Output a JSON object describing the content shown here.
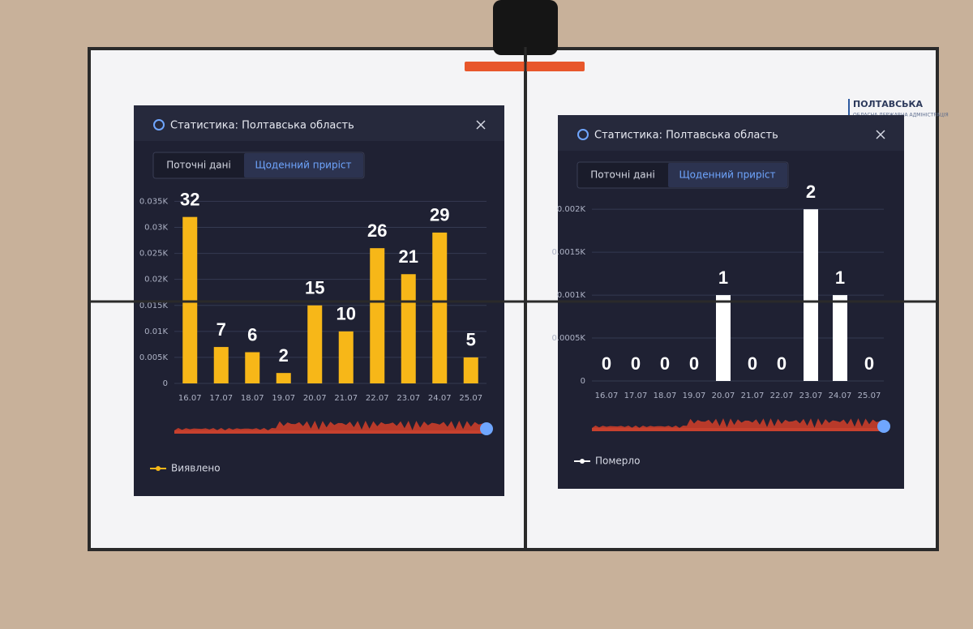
{
  "chart_data": [
    {
      "type": "bar",
      "title": "Статистика: Полтавська область",
      "tabs": [
        "Поточні дані",
        "Щоденний приріст"
      ],
      "categories": [
        "16.07",
        "17.07",
        "18.07",
        "19.07",
        "20.07",
        "21.07",
        "22.07",
        "23.07",
        "24.07",
        "25.07"
      ],
      "series": [
        {
          "name": "Виявлено",
          "color": "#f7b718",
          "values": [
            32,
            7,
            6,
            2,
            15,
            10,
            26,
            21,
            29,
            5
          ]
        }
      ],
      "ylim": [
        0,
        36
      ],
      "yticks": [
        0,
        {
          "value": 5,
          "label": "0.005K"
        },
        {
          "value": 10,
          "label": "0.01K"
        },
        {
          "value": 15,
          "label": "0.015K"
        },
        {
          "value": 20,
          "label": "0.02K"
        },
        {
          "value": 25,
          "label": "0.025K"
        },
        {
          "value": 30,
          "label": "0.03K"
        },
        {
          "value": 35,
          "label": "0.035K"
        }
      ],
      "grid": true
    },
    {
      "type": "bar",
      "title": "Статистика: Полтавська область",
      "tabs": [
        "Поточні дані",
        "Щоденний приріст"
      ],
      "categories": [
        "16.07",
        "17.07",
        "18.07",
        "19.07",
        "20.07",
        "21.07",
        "22.07",
        "23.07",
        "24.07",
        "25.07"
      ],
      "series": [
        {
          "name": "Померло",
          "color": "#ffffff",
          "values": [
            0,
            0,
            0,
            0,
            1,
            0,
            0,
            2,
            1,
            0
          ]
        }
      ],
      "ylim": [
        0,
        2.2
      ],
      "yticks": [
        0,
        {
          "value": 0.5,
          "label": "0.0005K"
        },
        {
          "value": 1,
          "label": "0.001K"
        },
        {
          "value": 1.5,
          "label": "0.0015K"
        },
        {
          "value": 2,
          "label": "0.002K"
        }
      ],
      "grid": true
    }
  ],
  "logo": {
    "name": "ПОЛТАВСЬКА",
    "subtitle": "ОБЛАСНА ДЕРЖАВНА АДМІНІСТРАЦІЯ"
  }
}
